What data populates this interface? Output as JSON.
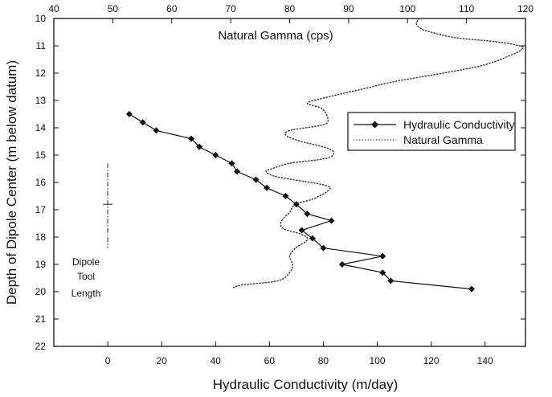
{
  "chart_data": {
    "type": "line",
    "top_axis": {
      "label": "Natural Gamma (cps)",
      "range": [
        40,
        120
      ],
      "ticks": [
        40,
        50,
        60,
        70,
        80,
        90,
        100,
        110,
        120
      ]
    },
    "bottom_axis": {
      "label": "Hydraulic Conductivity (m/day)",
      "range": [
        -20,
        155
      ],
      "ticks": [
        0,
        20,
        40,
        60,
        80,
        100,
        120,
        140
      ]
    },
    "left_axis": {
      "label": "Depth of Dipole Center (m below datum)",
      "range": [
        10,
        22
      ],
      "inverted": true,
      "ticks": [
        10,
        11,
        12,
        13,
        14,
        15,
        16,
        17,
        18,
        19,
        20,
        21,
        22
      ]
    },
    "legend": {
      "placement": "right-middle",
      "entries": [
        "Hydraulic Conductivity",
        "Natural Gamma"
      ]
    },
    "annotation": {
      "lines": [
        "Dipole",
        "Tool",
        "Length"
      ],
      "x": 0,
      "depth_range": [
        15.3,
        18.4
      ],
      "center_depth": 16.8
    },
    "series": [
      {
        "name": "Hydraulic Conductivity",
        "axis": "bottom",
        "style": "solid-diamond",
        "points": [
          [
            8,
            13.5
          ],
          [
            13,
            13.8
          ],
          [
            18,
            14.1
          ],
          [
            31,
            14.4
          ],
          [
            34,
            14.7
          ],
          [
            40,
            15.0
          ],
          [
            46,
            15.3
          ],
          [
            48,
            15.6
          ],
          [
            55,
            15.9
          ],
          [
            59,
            16.2
          ],
          [
            66,
            16.5
          ],
          [
            70,
            16.8
          ],
          [
            74,
            17.15
          ],
          [
            83,
            17.4
          ],
          [
            72,
            17.75
          ],
          [
            76,
            18.05
          ],
          [
            80,
            18.4
          ],
          [
            102,
            18.7
          ],
          [
            87,
            19.0
          ],
          [
            102,
            19.3
          ],
          [
            105,
            19.6
          ],
          [
            135,
            19.9
          ]
        ]
      },
      {
        "name": "Natural Gamma",
        "axis": "top",
        "style": "dotted",
        "points": [
          [
            102,
            10.0
          ],
          [
            101.5,
            10.2
          ],
          [
            102.5,
            10.4
          ],
          [
            104,
            10.5
          ],
          [
            108,
            10.7
          ],
          [
            115,
            10.85
          ],
          [
            119,
            11.0
          ],
          [
            119.5,
            11.1
          ],
          [
            118,
            11.3
          ],
          [
            113,
            11.7
          ],
          [
            106,
            12.0
          ],
          [
            98,
            12.3
          ],
          [
            92,
            12.6
          ],
          [
            86,
            12.9
          ],
          [
            83,
            13.1
          ],
          [
            85.5,
            13.3
          ],
          [
            86.5,
            13.7
          ],
          [
            85.5,
            13.9
          ],
          [
            80,
            14.1
          ],
          [
            79.5,
            14.3
          ],
          [
            82,
            14.5
          ],
          [
            87,
            14.8
          ],
          [
            86.5,
            15.1
          ],
          [
            80,
            15.3
          ],
          [
            77,
            15.5
          ],
          [
            76,
            15.6
          ],
          [
            78,
            15.8
          ],
          [
            86,
            16.1
          ],
          [
            86.5,
            16.3
          ],
          [
            84,
            16.6
          ],
          [
            81,
            16.8
          ],
          [
            80,
            17.1
          ],
          [
            79,
            17.3
          ],
          [
            78.5,
            17.5
          ],
          [
            79,
            17.7
          ],
          [
            82,
            17.9
          ],
          [
            83,
            18.1
          ],
          [
            81,
            18.4
          ],
          [
            80,
            18.7
          ],
          [
            80.5,
            19.0
          ],
          [
            80,
            19.3
          ],
          [
            78,
            19.6
          ],
          [
            72,
            19.75
          ],
          [
            70.5,
            19.85
          ]
        ]
      }
    ]
  }
}
